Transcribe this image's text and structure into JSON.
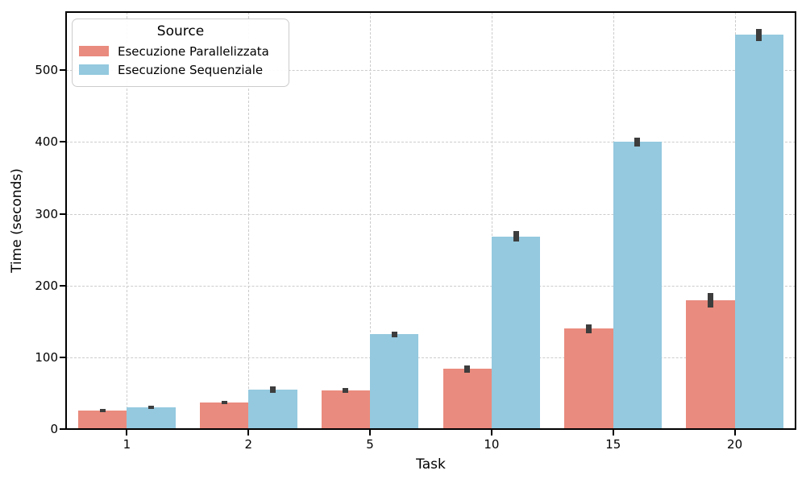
{
  "figure": {
    "xlabel": "Task",
    "ylabel": "Time (seconds)",
    "legend_title": "Source"
  },
  "chart_data": {
    "type": "bar",
    "title": "",
    "xlabel": "Task",
    "ylabel": "Time (seconds)",
    "categories": [
      "1",
      "2",
      "5",
      "10",
      "15",
      "20"
    ],
    "series": [
      {
        "name": "Esecuzione Parallelizzata",
        "color": "#E98B7E",
        "values": [
          26,
          37,
          54,
          84,
          140,
          180
        ],
        "ci_low": [
          24,
          35,
          50,
          78,
          133,
          169
        ],
        "ci_high": [
          28,
          39,
          57,
          89,
          146,
          190
        ]
      },
      {
        "name": "Esecuzione Sequenziale",
        "color": "#94C9DF",
        "values": [
          30,
          55,
          132,
          268,
          400,
          550
        ],
        "ci_low": [
          28,
          51,
          128,
          261,
          394,
          541
        ],
        "ci_high": [
          32,
          59,
          136,
          276,
          406,
          558
        ]
      }
    ],
    "yticks": [
      0,
      100,
      200,
      300,
      400,
      500
    ],
    "ylim": [
      0,
      581
    ],
    "grid": true,
    "grid_style": "dashed",
    "grid_color": "#cccccc",
    "error_bars": true,
    "error_bar_color": "#3d3d3d",
    "legend_title": "Source",
    "legend_position": "upper left",
    "background_color": "#ffffff"
  }
}
